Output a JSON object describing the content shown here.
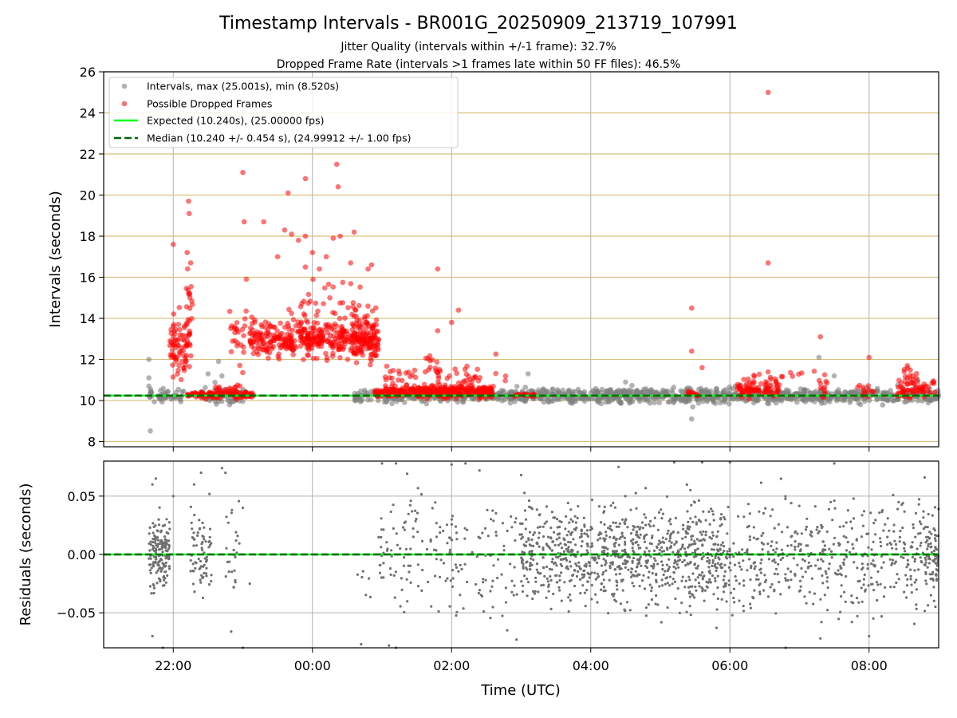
{
  "chart_data": [
    {
      "type": "scatter",
      "title": "Timestamp Intervals - BR001G_20250909_213719_107991",
      "subtitles": [
        "Jitter Quality (intervals within +/-1 frame): 32.7%",
        "Dropped Frame Rate (intervals >1 frames late within 50 FF files): 46.5%"
      ],
      "xlabel": "",
      "ylabel": "Intervals (seconds)",
      "x_ticks": [
        "22:00",
        "00:00",
        "02:00",
        "04:00",
        "06:00",
        "08:00"
      ],
      "x_range_hours": [
        -3.0,
        9.0
      ],
      "y_ticks": [
        "8",
        "10",
        "12",
        "14",
        "16",
        "18",
        "20",
        "22",
        "24",
        "26"
      ],
      "ylim": [
        7.75,
        26
      ],
      "grid": true,
      "legend_position": "top-left",
      "legend": [
        "Intervals, max (25.001s), min (8.520s)",
        "Possible Dropped Frames",
        "Expected (10.240s), (25.00000 fps)",
        "Median (10.240 +/- 0.454 s), (24.99912 +/- 1.00 fps)"
      ],
      "expected_interval": 10.24,
      "median_interval": 10.24,
      "series": [
        {
          "name": "Intervals, max (25.001s), min (8.520s)",
          "color": "#808080",
          "points": [
            [
              -2.35,
              12.0
            ],
            [
              -2.35,
              11.1
            ],
            [
              -2.35,
              10.7
            ],
            [
              -2.33,
              8.52
            ],
            [
              -2.2,
              10.1
            ],
            [
              -1.5,
              11.3
            ],
            [
              -1.3,
              11.2
            ],
            [
              -1.35,
              11.9
            ],
            [
              0.7,
              10.0
            ],
            [
              3.1,
              11.3
            ],
            [
              3.6,
              10.5
            ],
            [
              4.5,
              10.9
            ],
            [
              5.45,
              9.1
            ],
            [
              7.28,
              12.1
            ],
            [
              7.5,
              11.2
            ],
            [
              8.7,
              11.0
            ]
          ]
        },
        {
          "name": "Possible Dropped Frames",
          "color": "#ff0000",
          "points": [
            [
              -2.0,
              17.6
            ],
            [
              -1.78,
              19.7
            ],
            [
              -1.77,
              19.1
            ],
            [
              -1.8,
              17.2
            ],
            [
              -1.75,
              16.7
            ],
            [
              -1.78,
              15.2
            ],
            [
              -1.0,
              21.1
            ],
            [
              -0.98,
              18.7
            ],
            [
              -0.95,
              15.9
            ],
            [
              -0.7,
              18.7
            ],
            [
              -0.5,
              17.0
            ],
            [
              -0.4,
              18.3
            ],
            [
              -0.35,
              20.1
            ],
            [
              -0.3,
              18.1
            ],
            [
              -0.2,
              17.8
            ],
            [
              -0.1,
              18.0
            ],
            [
              0.0,
              17.2
            ],
            [
              -0.1,
              16.5
            ],
            [
              0.1,
              16.4
            ],
            [
              0.2,
              17.0
            ],
            [
              0.25,
              15.0
            ],
            [
              -0.1,
              20.8
            ],
            [
              0.3,
              17.9
            ],
            [
              0.35,
              21.5
            ],
            [
              0.37,
              20.4
            ],
            [
              0.4,
              18.0
            ],
            [
              0.55,
              16.7
            ],
            [
              0.6,
              18.2
            ],
            [
              0.8,
              16.4
            ],
            [
              0.85,
              16.6
            ],
            [
              1.8,
              16.4
            ],
            [
              2.1,
              14.4
            ],
            [
              2.0,
              13.8
            ],
            [
              1.8,
              13.4
            ],
            [
              5.45,
              14.5
            ],
            [
              5.45,
              12.4
            ],
            [
              5.6,
              11.6
            ],
            [
              6.55,
              25.0
            ],
            [
              6.55,
              16.7
            ],
            [
              7.3,
              13.1
            ],
            [
              8.0,
              12.1
            ],
            [
              8.55,
              11.7
            ]
          ]
        }
      ]
    },
    {
      "type": "scatter",
      "xlabel": "Time (UTC)",
      "ylabel": "Residuals (seconds)",
      "x_ticks": [
        "22:00",
        "00:00",
        "02:00",
        "04:00",
        "06:00",
        "08:00"
      ],
      "y_ticks": [
        "−0.05",
        "0.00",
        "0.05"
      ],
      "ylim": [
        -0.08,
        0.08
      ],
      "grid": true,
      "zero_line": 0.0,
      "series": [
        {
          "color": "#707070",
          "points": [
            [
              -2.3,
              0.06
            ],
            [
              -2.25,
              0.065
            ],
            [
              -2.0,
              0.05
            ],
            [
              -1.7,
              0.06
            ],
            [
              -1.6,
              0.07
            ],
            [
              -1.3,
              0.074
            ],
            [
              -1.25,
              0.07
            ],
            [
              -1.0,
              0.04
            ],
            [
              -0.9,
              -0.025
            ],
            [
              -1.0,
              -0.08
            ],
            [
              -2.3,
              -0.07
            ],
            [
              -2.15,
              -0.08
            ],
            [
              0.7,
              -0.077
            ],
            [
              1.1,
              -0.078
            ],
            [
              1.2,
              -0.08
            ],
            [
              1.0,
              0.078
            ],
            [
              1.2,
              0.078
            ],
            [
              2.0,
              0.077
            ],
            [
              2.2,
              0.078
            ],
            [
              2.4,
              0.072
            ],
            [
              2.8,
              -0.065
            ],
            [
              3.0,
              0.068
            ],
            [
              4.4,
              0.075
            ],
            [
              5.2,
              0.079
            ],
            [
              5.6,
              0.079
            ],
            [
              6.0,
              0.079
            ],
            [
              6.8,
              -0.08
            ],
            [
              7.3,
              -0.072
            ],
            [
              7.5,
              0.078
            ],
            [
              8.0,
              -0.07
            ],
            [
              8.8,
              0.066
            ]
          ]
        }
      ]
    }
  ]
}
